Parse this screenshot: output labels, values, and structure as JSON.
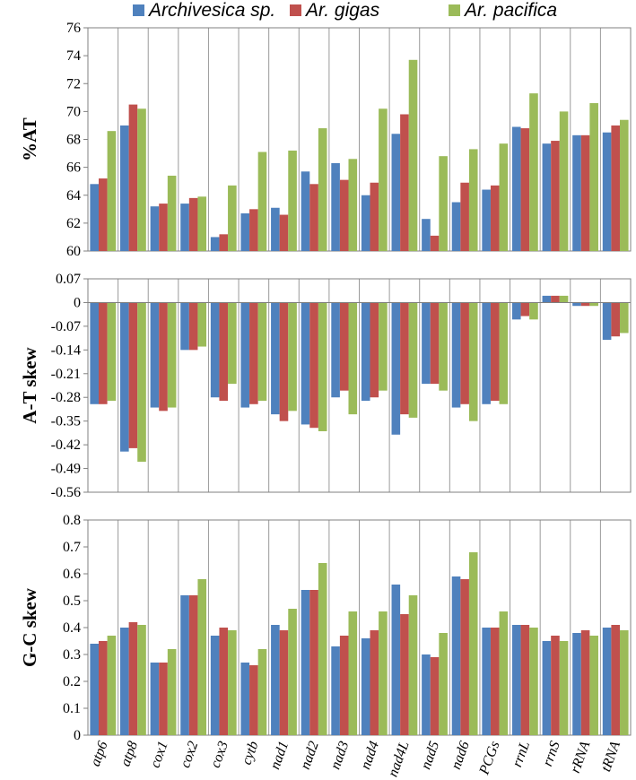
{
  "chart_data": {
    "type": "bar",
    "categories": [
      "atp6",
      "atp8",
      "cox1",
      "cox2",
      "cox3",
      "cytb",
      "nad1",
      "nad2",
      "nad3",
      "nad4",
      "nad4L",
      "nad5",
      "nad6",
      "PCGs",
      "rrnL",
      "rrnS",
      "rRNA",
      "tRNA"
    ],
    "legend": [
      {
        "name": "Archivesica sp.",
        "color": "#4F81BD"
      },
      {
        "name": "Ar. gigas",
        "color": "#C0504D"
      },
      {
        "name": "Ar. pacifica",
        "color": "#9BBB59"
      }
    ],
    "panels": [
      {
        "ylabel": "%AT",
        "ylim": [
          60,
          76
        ],
        "yticks": [
          "60",
          "62",
          "64",
          "66",
          "68",
          "70",
          "72",
          "74",
          "76"
        ],
        "series": [
          {
            "name": "Archivesica sp.",
            "values": [
              64.8,
              69.0,
              63.2,
              63.4,
              61.0,
              62.7,
              63.1,
              65.7,
              66.3,
              64.0,
              68.4,
              62.3,
              63.5,
              64.4,
              68.9,
              67.7,
              68.3,
              68.5
            ]
          },
          {
            "name": "Ar. gigas",
            "values": [
              65.2,
              70.5,
              63.4,
              63.8,
              61.2,
              63.0,
              62.6,
              64.8,
              65.1,
              64.9,
              69.8,
              61.1,
              64.9,
              64.7,
              68.8,
              67.9,
              68.3,
              69.0
            ]
          },
          {
            "name": "Ar. pacifica",
            "values": [
              68.6,
              70.2,
              65.4,
              63.9,
              64.7,
              67.1,
              67.2,
              68.8,
              66.6,
              70.2,
              73.7,
              66.8,
              67.3,
              67.7,
              71.3,
              70.0,
              70.6,
              69.4
            ]
          }
        ]
      },
      {
        "ylabel": "A-T skew",
        "ylim": [
          -0.56,
          0.07
        ],
        "yticks": [
          "0.07",
          "0",
          "-0.07",
          "-0.14",
          "-0.21",
          "-0.28",
          "-0.35",
          "-0.42",
          "-0.49",
          "-0.56"
        ],
        "series": [
          {
            "name": "Archivesica sp.",
            "values": [
              -0.3,
              -0.44,
              -0.31,
              -0.14,
              -0.28,
              -0.31,
              -0.33,
              -0.36,
              -0.28,
              -0.29,
              -0.39,
              -0.24,
              -0.31,
              -0.3,
              -0.05,
              0.02,
              -0.01,
              -0.11
            ]
          },
          {
            "name": "Ar. gigas",
            "values": [
              -0.3,
              -0.43,
              -0.32,
              -0.14,
              -0.29,
              -0.3,
              -0.35,
              -0.37,
              -0.26,
              -0.28,
              -0.33,
              -0.24,
              -0.3,
              -0.29,
              -0.04,
              0.02,
              -0.01,
              -0.1
            ]
          },
          {
            "name": "Ar. pacifica",
            "values": [
              -0.29,
              -0.47,
              -0.31,
              -0.13,
              -0.24,
              -0.29,
              -0.32,
              -0.38,
              -0.33,
              -0.26,
              -0.34,
              -0.26,
              -0.35,
              -0.3,
              -0.05,
              0.02,
              -0.01,
              -0.09
            ]
          }
        ]
      },
      {
        "ylabel": "G-C skew",
        "ylim": [
          0,
          0.8
        ],
        "yticks": [
          "0",
          "0.1",
          "0.2",
          "0.3",
          "0.4",
          "0.5",
          "0.6",
          "0.7",
          "0.8"
        ],
        "series": [
          {
            "name": "Archivesica sp.",
            "values": [
              0.34,
              0.4,
              0.27,
              0.52,
              0.37,
              0.27,
              0.41,
              0.54,
              0.33,
              0.36,
              0.56,
              0.3,
              0.59,
              0.4,
              0.41,
              0.35,
              0.38,
              0.4
            ]
          },
          {
            "name": "Ar. gigas",
            "values": [
              0.35,
              0.42,
              0.27,
              0.52,
              0.4,
              0.26,
              0.39,
              0.54,
              0.37,
              0.39,
              0.45,
              0.29,
              0.58,
              0.4,
              0.41,
              0.37,
              0.39,
              0.41
            ]
          },
          {
            "name": "Ar. pacifica",
            "values": [
              0.37,
              0.41,
              0.32,
              0.58,
              0.39,
              0.32,
              0.47,
              0.64,
              0.46,
              0.46,
              0.52,
              0.38,
              0.68,
              0.46,
              0.4,
              0.35,
              0.37,
              0.39
            ]
          }
        ]
      }
    ]
  }
}
